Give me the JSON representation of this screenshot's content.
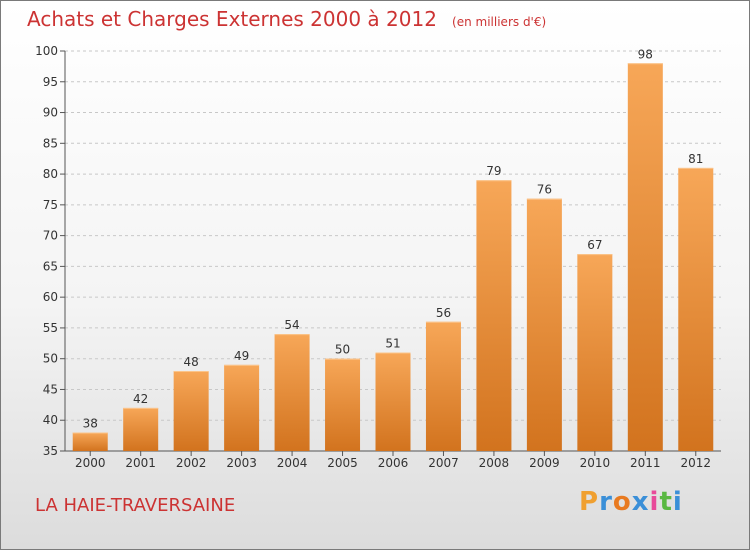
{
  "header": {
    "title": "Achats et Charges Externes 2000 à 2012",
    "unit": "(en milliers d'€)"
  },
  "footer": {
    "city": "LA HAIE-TRAVERSAINE",
    "logo": "Proxiti"
  },
  "colors": {
    "bar_light": "#f7a758",
    "bar_dark": "#d2731e",
    "title": "#cc3333",
    "logo_letters": [
      "#f0a030",
      "#3a8fd8",
      "#e87a20",
      "#3a8fd8",
      "#e84a9a",
      "#5ab842",
      "#3a8fd8"
    ]
  },
  "chart_data": {
    "type": "bar",
    "categories": [
      "2000",
      "2001",
      "2002",
      "2003",
      "2004",
      "2005",
      "2006",
      "2007",
      "2008",
      "2009",
      "2010",
      "2011",
      "2012"
    ],
    "values": [
      38,
      42,
      48,
      49,
      54,
      50,
      51,
      56,
      79,
      76,
      67,
      98,
      81
    ],
    "ylim": [
      35,
      100
    ],
    "yticks": [
      35,
      40,
      45,
      50,
      55,
      60,
      65,
      70,
      75,
      80,
      85,
      90,
      95,
      100
    ],
    "grid": "horizontal-dashed",
    "data_labels": true
  }
}
